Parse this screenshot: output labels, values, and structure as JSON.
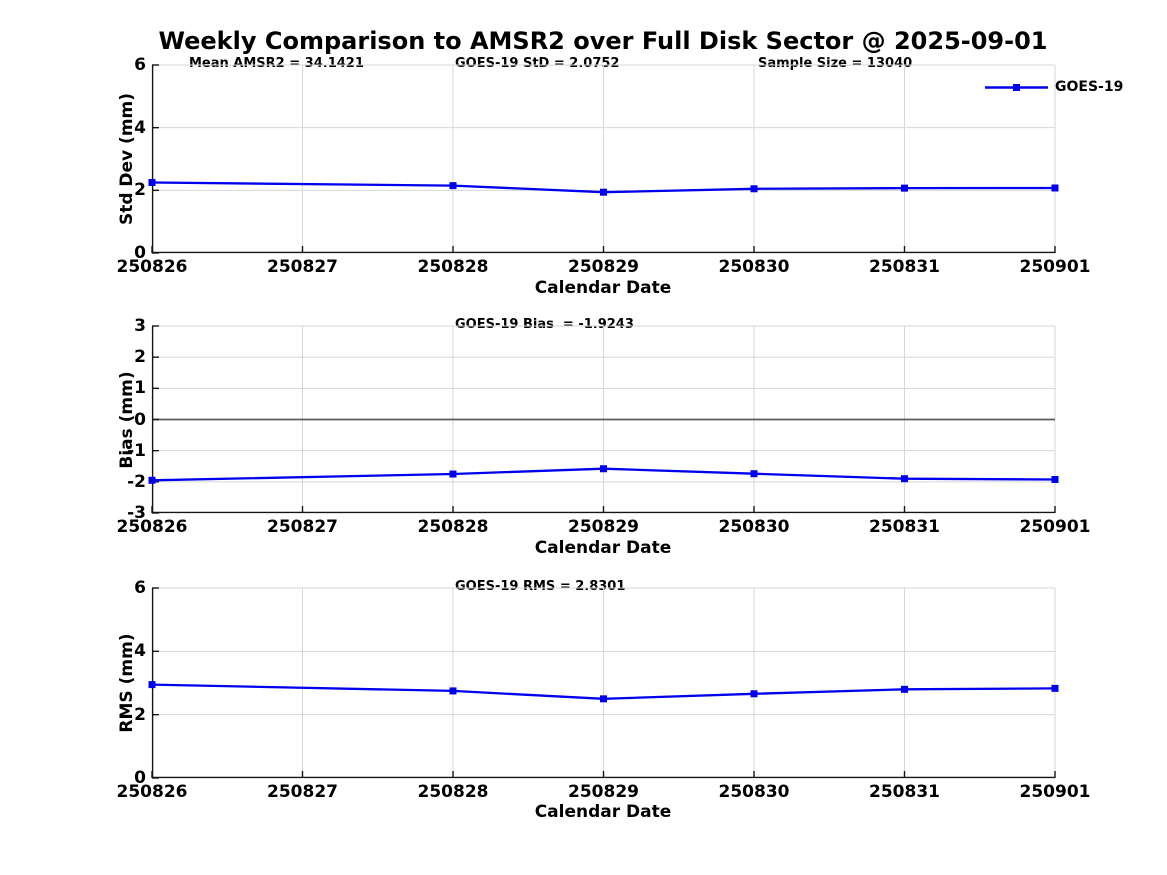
{
  "page_title": "Weekly Comparison to AMSR2 over Full Disk Sector @ 2025-09-01",
  "colors": {
    "series": "#0000ee",
    "grid": "#d7d7d7",
    "axis": "#151515",
    "zero_line": "#5a5a5a",
    "background": "#ffffff",
    "text": "#000000"
  },
  "legend": {
    "label": "GOES-19",
    "marker": "square",
    "position": "top-right"
  },
  "chart_data": [
    {
      "type": "line",
      "ylabel": "Std Dev (mm)",
      "xlabel": "Calendar Date",
      "ylim": [
        0,
        6
      ],
      "yticks": [
        0,
        2,
        4,
        6
      ],
      "xticklabels": [
        "250826",
        "250827",
        "250828",
        "250829",
        "250830",
        "250831",
        "250901"
      ],
      "grid": true,
      "zero_line": false,
      "annotations": [
        {
          "text": "Mean AMSR2 = 34.1421"
        },
        {
          "text": "GOES-19 StD = 2.0752"
        },
        {
          "text": "Sample Size = 13040"
        }
      ],
      "series": [
        {
          "name": "GOES-19",
          "marker": "square",
          "points": [
            {
              "date": "250826",
              "value": 2.25
            },
            {
              "date": "250828",
              "value": 2.15
            },
            {
              "date": "250829",
              "value": 1.94
            },
            {
              "date": "250830",
              "value": 2.05
            },
            {
              "date": "250831",
              "value": 2.07
            },
            {
              "date": "250901",
              "value": 2.0752
            }
          ]
        }
      ]
    },
    {
      "type": "line",
      "ylabel": "Bias (mm)",
      "xlabel": "Calendar Date",
      "ylim": [
        -3,
        3
      ],
      "yticks": [
        -3,
        -2,
        -1,
        0,
        1,
        2,
        3
      ],
      "xticklabels": [
        "250826",
        "250827",
        "250828",
        "250829",
        "250830",
        "250831",
        "250901"
      ],
      "grid": true,
      "zero_line": true,
      "annotations": [
        {
          "text": "GOES-19 Bias  = -1.9243"
        }
      ],
      "series": [
        {
          "name": "GOES-19",
          "marker": "square",
          "points": [
            {
              "date": "250826",
              "value": -1.95
            },
            {
              "date": "250828",
              "value": -1.75
            },
            {
              "date": "250829",
              "value": -1.58
            },
            {
              "date": "250830",
              "value": -1.74
            },
            {
              "date": "250831",
              "value": -1.9
            },
            {
              "date": "250901",
              "value": -1.9243
            }
          ]
        }
      ]
    },
    {
      "type": "line",
      "ylabel": "RMS (mm)",
      "xlabel": "Calendar Date",
      "ylim": [
        0,
        6
      ],
      "yticks": [
        0,
        2,
        4,
        6
      ],
      "xticklabels": [
        "250826",
        "250827",
        "250828",
        "250829",
        "250830",
        "250831",
        "250901"
      ],
      "grid": true,
      "zero_line": false,
      "annotations": [
        {
          "text": "GOES-19 RMS = 2.8301"
        }
      ],
      "series": [
        {
          "name": "GOES-19",
          "marker": "square",
          "points": [
            {
              "date": "250826",
              "value": 2.95
            },
            {
              "date": "250828",
              "value": 2.75
            },
            {
              "date": "250829",
              "value": 2.5
            },
            {
              "date": "250830",
              "value": 2.66
            },
            {
              "date": "250831",
              "value": 2.8
            },
            {
              "date": "250901",
              "value": 2.8301
            }
          ]
        }
      ]
    }
  ]
}
